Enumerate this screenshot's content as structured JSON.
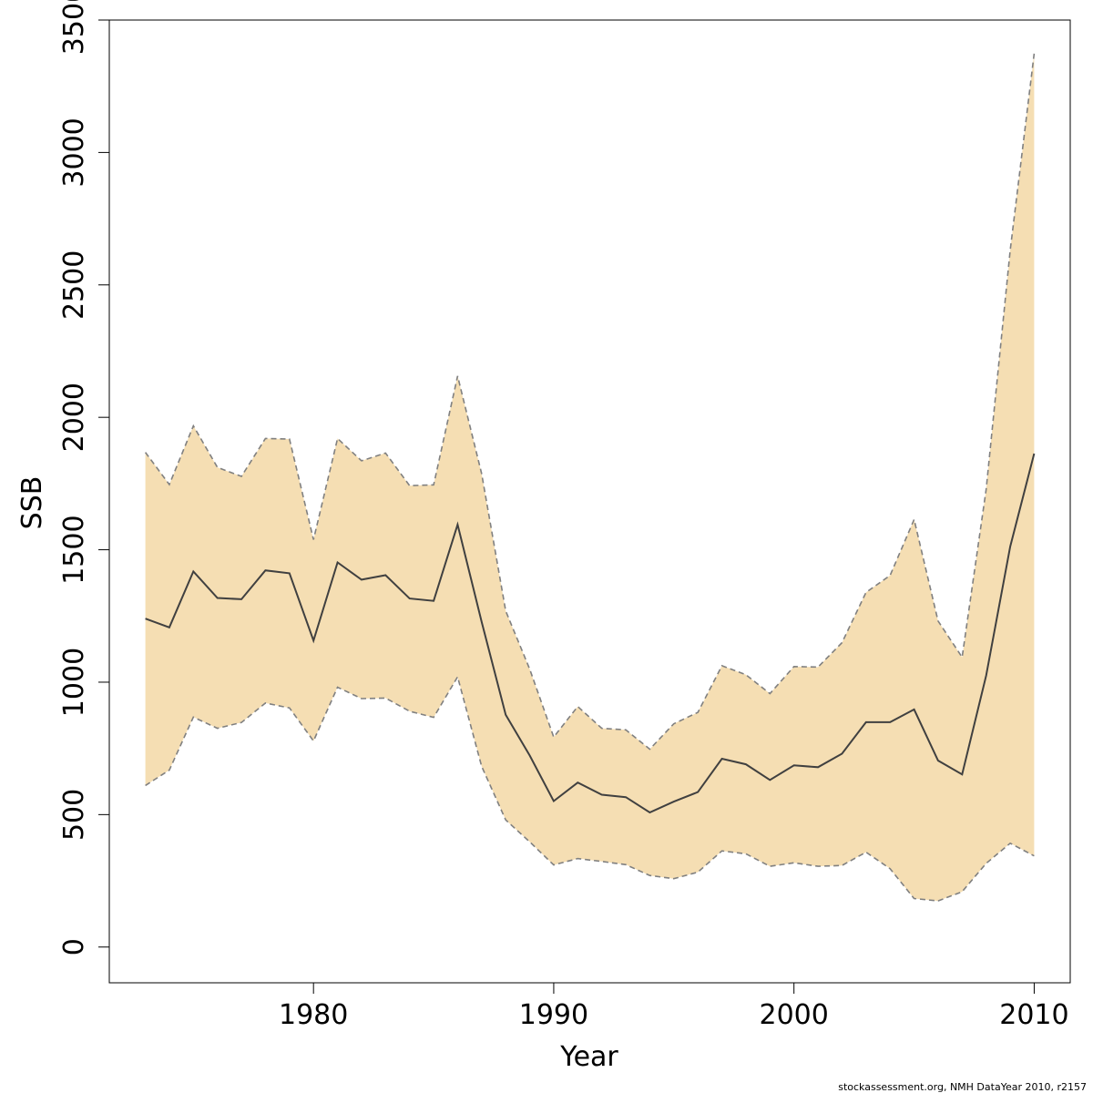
{
  "chart_data": {
    "type": "area",
    "title": "",
    "xlabel": "Year",
    "ylabel": "SSB",
    "xlim": [
      1971.5,
      2011.5
    ],
    "ylim": [
      -135,
      3500
    ],
    "x_ticks": [
      1980,
      1990,
      2000,
      2010
    ],
    "y_ticks": [
      0,
      500,
      1000,
      1500,
      2000,
      2500,
      3000,
      3500
    ],
    "x_tick_labels": [
      "1980",
      "1990",
      "2000",
      "2010"
    ],
    "y_tick_labels": [
      "0",
      "500",
      "1000",
      "1500",
      "2000",
      "2500",
      "3000",
      "3500"
    ],
    "grid": false,
    "colors": {
      "band_fill": "#F5DEB3",
      "median_line": "#404040",
      "bound_line": "#808080"
    },
    "x": [
      1973,
      1974,
      1975,
      1976,
      1977,
      1978,
      1979,
      1980,
      1981,
      1982,
      1983,
      1984,
      1985,
      1986,
      1987,
      1988,
      1989,
      1990,
      1991,
      1992,
      1993,
      1994,
      1995,
      1996,
      1997,
      1998,
      1999,
      2000,
      2001,
      2002,
      2003,
      2004,
      2005,
      2006,
      2007,
      2008,
      2009,
      2010
    ],
    "series": [
      {
        "role": "estimate",
        "values": [
          1240,
          1207,
          1418,
          1318,
          1313,
          1422,
          1411,
          1157,
          1452,
          1387,
          1404,
          1316,
          1307,
          1595,
          1228,
          877,
          723,
          551,
          621,
          575,
          566,
          508,
          549,
          585,
          711,
          690,
          631,
          686,
          679,
          730,
          849,
          849,
          897,
          704,
          652,
          1025,
          1512,
          1863
        ]
      },
      {
        "role": "upper",
        "values": [
          1868,
          1746,
          1968,
          1811,
          1777,
          1920,
          1918,
          1538,
          1920,
          1836,
          1865,
          1742,
          1745,
          2156,
          1787,
          1269,
          1049,
          793,
          908,
          826,
          820,
          747,
          843,
          886,
          1062,
          1028,
          957,
          1059,
          1057,
          1149,
          1339,
          1403,
          1614,
          1231,
          1094,
          1728,
          2631,
          3373
        ]
      },
      {
        "role": "lower",
        "values": [
          610,
          668,
          868,
          826,
          848,
          921,
          903,
          778,
          981,
          938,
          940,
          890,
          867,
          1020,
          682,
          480,
          397,
          310,
          334,
          323,
          311,
          270,
          258,
          283,
          363,
          352,
          305,
          318,
          305,
          308,
          358,
          296,
          183,
          174,
          209,
          316,
          392,
          344
        ]
      }
    ],
    "credit": "stockassessment.org, NMH  DataYear  2010, r2157"
  }
}
